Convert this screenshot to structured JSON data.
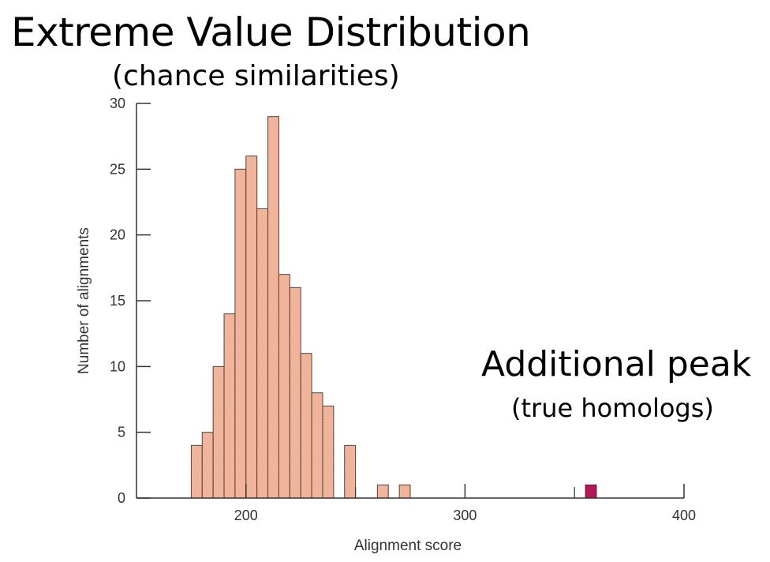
{
  "chart_data": {
    "type": "bar",
    "title": "Extreme Value Distribution",
    "subtitle": "(chance similarities)",
    "xlabel": "Alignment score",
    "ylabel": "Number of alignments",
    "xlim": [
      150,
      400
    ],
    "ylim": [
      0,
      30
    ],
    "x_ticks": [
      200,
      300,
      400
    ],
    "y_ticks": [
      0,
      5,
      10,
      15,
      20,
      25,
      30
    ],
    "bin_width": 5,
    "series": [
      {
        "color": "#f2b8a0",
        "bins": [
          {
            "x": 175,
            "value": 4
          },
          {
            "x": 180,
            "value": 5
          },
          {
            "x": 185,
            "value": 10
          },
          {
            "x": 190,
            "value": 14
          },
          {
            "x": 195,
            "value": 25
          },
          {
            "x": 200,
            "value": 26
          },
          {
            "x": 205,
            "value": 22
          },
          {
            "x": 210,
            "value": 29
          },
          {
            "x": 215,
            "value": 17
          },
          {
            "x": 220,
            "value": 16
          },
          {
            "x": 225,
            "value": 11
          },
          {
            "x": 230,
            "value": 8
          },
          {
            "x": 235,
            "value": 7
          },
          {
            "x": 245,
            "value": 4
          },
          {
            "x": 260,
            "value": 1
          },
          {
            "x": 270,
            "value": 1
          }
        ]
      },
      {
        "color": "#b0185a",
        "bins": [
          {
            "x": 355,
            "value": 1
          }
        ]
      }
    ],
    "annotations": [
      {
        "text": "Additional peak",
        "subtext": "(true homologs)"
      }
    ]
  }
}
